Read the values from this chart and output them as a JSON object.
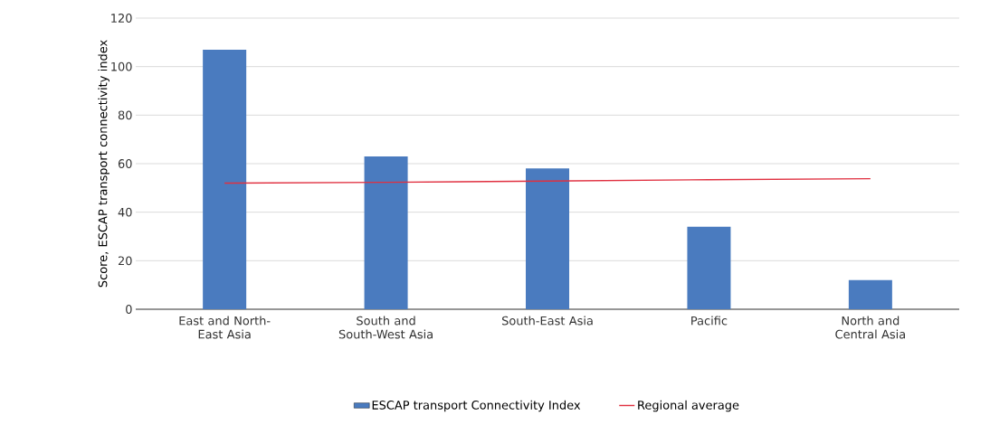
{
  "chart_data": {
    "type": "bar",
    "ylabel": "Score, ESCAP transport connectivity index",
    "categories": [
      "East and North-East Asia",
      "South and South-West Asia",
      "South-East Asia",
      "Pacific",
      "North and Central Asia"
    ],
    "series": [
      {
        "name": "ESCAP transport Connectivity Index",
        "color": "#4a7bbf",
        "values": [
          107,
          63,
          58,
          34,
          12
        ]
      },
      {
        "name": "Regional average",
        "type": "line",
        "color": "#e03040",
        "values": [
          52,
          52.3,
          52.8,
          53.4,
          53.8
        ]
      }
    ],
    "ylim": [
      0,
      120
    ],
    "yticks": [
      0,
      20,
      40,
      60,
      80,
      100,
      120
    ],
    "grid": "y",
    "legend": "bottom"
  }
}
